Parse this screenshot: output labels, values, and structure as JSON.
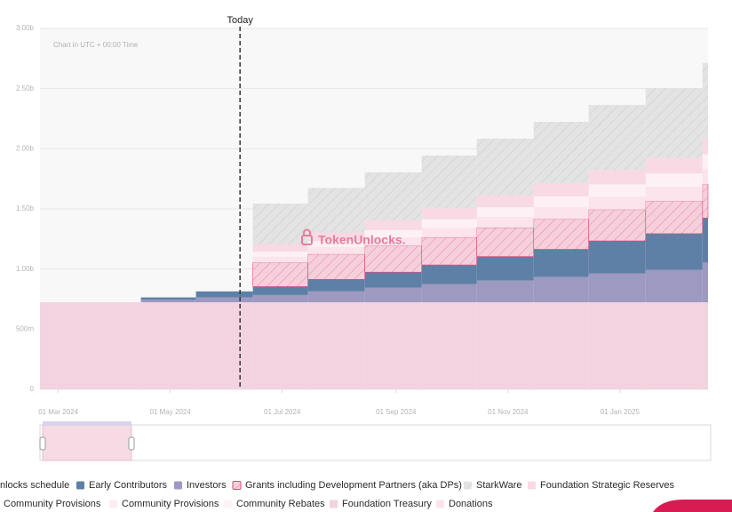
{
  "chart_data": {
    "type": "stacked-step-area",
    "note": "Chart in UTC + 00:00 Time",
    "watermark": "TokenUnlocks.",
    "legend_title": "nlocks schedule",
    "today": {
      "label": "Today",
      "x": "2024-06-08"
    },
    "x": [
      "2024-02-20",
      "2024-04-15",
      "2024-05-15",
      "2024-06-15",
      "2024-07-15",
      "2024-08-15",
      "2024-09-15",
      "2024-10-15",
      "2024-11-15",
      "2024-12-15",
      "2025-01-15",
      "2025-02-15"
    ],
    "xlim": [
      "2024-02-20",
      "2025-02-18"
    ],
    "xticks": [
      {
        "value": "2024-03-01",
        "label": "01 Mar 2024"
      },
      {
        "value": "2024-05-01",
        "label": "01 May 2024"
      },
      {
        "value": "2024-07-01",
        "label": "01 Jul 2024"
      },
      {
        "value": "2024-09-01",
        "label": "01 Sep 2024"
      },
      {
        "value": "2024-11-01",
        "label": "01 Nov 2024"
      },
      {
        "value": "2025-01-01",
        "label": "01 Jan 2025"
      }
    ],
    "ylim": [
      0,
      3000000000
    ],
    "yticks": [
      0,
      {
        "value": 500000000,
        "label": "500m"
      },
      {
        "value": 1000000000,
        "label": "1.00b"
      },
      {
        "value": 1500000000,
        "label": "1.50b"
      },
      {
        "value": 2000000000,
        "label": "2.00b"
      },
      {
        "value": 2500000000,
        "label": "2.50b"
      },
      {
        "value": 3000000000,
        "label": "3.00b"
      }
    ],
    "grid": true,
    "series": [
      {
        "name": "Foundation Treasury",
        "color": "#f2d3df",
        "hatch": false,
        "values": [
          724000000,
          724000000,
          724000000,
          724000000,
          724000000,
          724000000,
          724000000,
          724000000,
          724000000,
          724000000,
          724000000,
          724000000
        ]
      },
      {
        "name": "Investors",
        "color": "#9d99c1",
        "hatch": false,
        "values": [
          0,
          20000000,
          40000000,
          60000000,
          90000000,
          120000000,
          150000000,
          180000000,
          210000000,
          240000000,
          270000000,
          330000000
        ]
      },
      {
        "name": "Early Contributors",
        "color": "#5f80a6",
        "hatch": false,
        "values": [
          0,
          20000000,
          50000000,
          70000000,
          100000000,
          130000000,
          160000000,
          200000000,
          230000000,
          270000000,
          300000000,
          370000000
        ]
      },
      {
        "name": "Grants including Development Partners (aka DPs)",
        "color": "#f6cfdc",
        "hatch": true,
        "values": [
          0,
          0,
          0,
          200000000,
          210000000,
          220000000,
          230000000,
          240000000,
          250000000,
          260000000,
          270000000,
          280000000
        ]
      },
      {
        "name": "Community Provisions",
        "color": "#fbe4ec",
        "hatch": false,
        "values": [
          0,
          0,
          0,
          50000000,
          60000000,
          70000000,
          80000000,
          90000000,
          100000000,
          110000000,
          120000000,
          130000000
        ]
      },
      {
        "name": "Community Rebates",
        "color": "#fdf1f5",
        "hatch": false,
        "values": [
          0,
          0,
          0,
          40000000,
          50000000,
          60000000,
          70000000,
          80000000,
          90000000,
          100000000,
          110000000,
          120000000
        ]
      },
      {
        "name": "Foundation Strategic Reserves",
        "color": "#f8d9e4",
        "hatch": false,
        "values": [
          0,
          0,
          0,
          60000000,
          70000000,
          80000000,
          90000000,
          100000000,
          110000000,
          120000000,
          130000000,
          140000000
        ]
      },
      {
        "name": "StarkWare",
        "color": "#e3e3e3",
        "hatch": true,
        "values": [
          0,
          0,
          0,
          340000000,
          370000000,
          400000000,
          440000000,
          470000000,
          510000000,
          540000000,
          580000000,
          620000000
        ]
      },
      {
        "name": "Community Provisions",
        "color": "#fdeef3",
        "hatch": false,
        "values": [
          0,
          0,
          0,
          0,
          0,
          0,
          0,
          0,
          0,
          0,
          0,
          0
        ]
      },
      {
        "name": "Donations",
        "color": "#fbe3ec",
        "hatch": false,
        "values": [
          0,
          0,
          0,
          0,
          0,
          0,
          0,
          0,
          0,
          0,
          0,
          0
        ]
      }
    ]
  }
}
